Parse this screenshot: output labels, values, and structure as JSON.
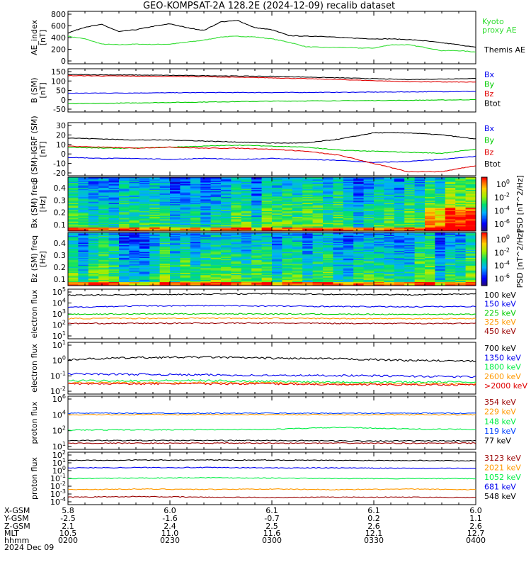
{
  "title": "GEO-KOMPSAT-2A 128.2E (2024-12-09) recalib dataset",
  "colors": {
    "black": "#000000",
    "red": "#e00000",
    "blue": "#0000ee",
    "green": "#00cc00",
    "kyoto_green": "#33dd33",
    "orange": "#ff9900",
    "dark_red": "#990000",
    "sky_blue": "#0040ff",
    "light_green": "#00ee44"
  },
  "footer": {
    "row_labels": [
      "X-GSM",
      "Y-GSM",
      "Z-GSM",
      "MLT",
      "hhmm",
      "2024 Dec 09"
    ],
    "columns": [
      {
        "x": "5.8",
        "y": "-2.5",
        "z": "2.1",
        "mlt": "10.5",
        "hhmm": "0200"
      },
      {
        "x": "6.0",
        "y": "-1.6",
        "z": "2.4",
        "mlt": "11.0",
        "hhmm": "0230"
      },
      {
        "x": "6.1",
        "y": "-0.7",
        "z": "2.5",
        "mlt": "11.6",
        "hhmm": "0300"
      },
      {
        "x": "6.1",
        "y": "0.2",
        "z": "2.6",
        "mlt": "12.1",
        "hhmm": "0330"
      },
      {
        "x": "6.0",
        "y": "1.1",
        "z": "2.6",
        "mlt": "12.7",
        "hhmm": "0400"
      }
    ]
  },
  "chart_data": [
    {
      "type": "line",
      "ylabel": "AE_index [nT]",
      "ylim": [
        0,
        800
      ],
      "yticks": [
        "800",
        "600",
        "400",
        "200",
        "0"
      ],
      "x": [
        0,
        5,
        10,
        15,
        20,
        25,
        30,
        35,
        40,
        45,
        50,
        55,
        60,
        65,
        70,
        75,
        80,
        85,
        90,
        95,
        100,
        105,
        110,
        115,
        120
      ],
      "series": [
        {
          "name": "Kyoto proxy AE",
          "color": "kyoto_green",
          "values": [
            420,
            380,
            300,
            290,
            300,
            295,
            300,
            330,
            360,
            410,
            420,
            410,
            380,
            330,
            260,
            250,
            250,
            240,
            240,
            290,
            290,
            250,
            200,
            200,
            180
          ]
        },
        {
          "name": "Themis AE",
          "color": "black",
          "values": [
            470,
            560,
            600,
            490,
            520,
            570,
            610,
            550,
            510,
            640,
            660,
            550,
            520,
            430,
            420,
            420,
            400,
            390,
            380,
            380,
            370,
            350,
            320,
            290,
            250
          ]
        }
      ]
    },
    {
      "type": "line",
      "ylabel": "B (SM) [nT]",
      "ylim": [
        -50,
        150
      ],
      "yticks": [
        "150",
        "100",
        "50",
        "0",
        "-50"
      ],
      "x": [
        0,
        20,
        40,
        60,
        80,
        100,
        120
      ],
      "series": [
        {
          "name": "Bx",
          "color": "blue",
          "values": [
            37,
            38,
            40,
            40,
            41,
            43,
            45
          ]
        },
        {
          "name": "By",
          "color": "green",
          "values": [
            -12,
            -8,
            -4,
            0,
            2,
            4,
            7
          ]
        },
        {
          "name": "Bz",
          "color": "red",
          "values": [
            118,
            116,
            113,
            108,
            100,
            90,
            88
          ]
        },
        {
          "name": "Btot",
          "color": "black",
          "values": [
            123,
            121,
            118,
            115,
            108,
            100,
            105
          ]
        }
      ]
    },
    {
      "type": "line",
      "ylabel": "B (SM)-IGRF (SM) [nT]",
      "ylim": [
        -22,
        30
      ],
      "yticks": [
        "30",
        "20",
        "10",
        "0",
        "-10",
        "-20"
      ],
      "x": [
        0,
        10,
        20,
        30,
        40,
        50,
        60,
        70,
        80,
        90,
        100,
        110,
        120
      ],
      "series": [
        {
          "name": "Bx",
          "color": "blue",
          "values": [
            -4,
            -5,
            -5,
            -6,
            -5,
            -6,
            -5,
            -6,
            -7,
            -9,
            -8,
            -6,
            -3
          ]
        },
        {
          "name": "By",
          "color": "green",
          "values": [
            6,
            5,
            5,
            6,
            7,
            8,
            7,
            6,
            3,
            2,
            1,
            0,
            4
          ]
        },
        {
          "name": "Bz",
          "color": "red",
          "values": [
            7,
            6,
            5,
            6,
            5,
            5,
            4,
            2,
            -2,
            -10,
            -18,
            -18,
            -12
          ]
        },
        {
          "name": "Btot",
          "color": "black",
          "values": [
            15,
            14,
            13,
            13,
            12,
            11,
            10,
            10,
            14,
            20,
            20,
            18,
            14
          ]
        }
      ]
    },
    {
      "type": "heatmap",
      "ylabel": "Bx (SM) freq [Hz]",
      "yticks": [
        "0.4",
        "0.3",
        "0.2",
        "0.1"
      ],
      "colorbar": {
        "label": "PSD [nT^2/Hz]",
        "ticks": [
          "10^0",
          "10^-2",
          "10^-4",
          "10^-6"
        ]
      }
    },
    {
      "type": "heatmap",
      "ylabel": "Bz (SM) freq [Hz]",
      "yticks": [
        "0.4",
        "0.3",
        "0.2",
        "0.1"
      ],
      "colorbar": {
        "label": "PSD [nT^2/Hz]",
        "ticks": [
          "10^0",
          "10^-2",
          "10^-4",
          "10^-6"
        ]
      }
    },
    {
      "type": "line",
      "ylabel": "electron flux",
      "yscale": "log",
      "ylim": [
        1,
        100000
      ],
      "yticks": [
        "10^5",
        "10^4",
        "10^3",
        "10^2",
        "10^1"
      ],
      "x": [
        0,
        20,
        40,
        60,
        80,
        100,
        120
      ],
      "series": [
        {
          "name": "100 keV",
          "color": "black",
          "values": [
            25000,
            28000,
            32000,
            35000,
            30000,
            28000,
            32000
          ]
        },
        {
          "name": "150 keV",
          "color": "blue",
          "values": [
            1500,
            2000,
            2200,
            2000,
            1800,
            1700,
            1800
          ]
        },
        {
          "name": "225 keV",
          "color": "green",
          "values": [
            300,
            320,
            330,
            320,
            300,
            290,
            300
          ]
        },
        {
          "name": "325 keV",
          "color": "orange",
          "values": [
            110,
            115,
            120,
            118,
            110,
            108,
            110
          ]
        },
        {
          "name": "450 keV",
          "color": "dark_red",
          "values": [
            35,
            36,
            38,
            38,
            36,
            35,
            36
          ]
        }
      ]
    },
    {
      "type": "line",
      "ylabel": "electron flux",
      "yscale": "log",
      "ylim": [
        0.01,
        10
      ],
      "yticks": [
        "10^1",
        "10^0",
        "10^-1",
        "10^-2"
      ],
      "x": [
        0,
        20,
        40,
        60,
        80,
        100,
        120
      ],
      "series": [
        {
          "name": "700 keV",
          "color": "black",
          "values": [
            1.0,
            1.3,
            1.4,
            1.2,
            1.1,
            0.9,
            0.8
          ]
        },
        {
          "name": "1350 keV",
          "color": "blue",
          "values": [
            0.15,
            0.14,
            0.13,
            0.12,
            0.12,
            0.11,
            0.1
          ]
        },
        {
          "name": "1800 keV",
          "color": "light_green",
          "values": [
            0.06,
            0.06,
            0.06,
            0.055,
            0.05,
            0.05,
            0.05
          ]
        },
        {
          "name": "2600 keV",
          "color": "orange",
          "values": [
            0.045,
            0.045,
            0.045,
            0.045,
            0.04,
            0.04,
            0.04
          ]
        },
        {
          "name": ">2000 keV",
          "color": "red",
          "values": [
            0.04,
            0.04,
            0.04,
            0.04,
            0.035,
            0.035,
            0.035
          ]
        }
      ]
    },
    {
      "type": "line",
      "ylabel": "proton flux",
      "yscale": "log",
      "ylim": [
        1,
        1000000
      ],
      "yticks": [
        "10^6",
        "10^4",
        "10^2",
        "10^1"
      ],
      "x": [
        0,
        20,
        40,
        60,
        80,
        100,
        120
      ],
      "series": [
        {
          "name": "354 keV",
          "color": "dark_red",
          "values": [
            5,
            5,
            5,
            5,
            5,
            5,
            5
          ]
        },
        {
          "name": "229 keV",
          "color": "orange",
          "values": [
            8000,
            8200,
            8300,
            8300,
            8200,
            8100,
            8000
          ]
        },
        {
          "name": "148 keV",
          "color": "light_green",
          "values": [
            150,
            160,
            170,
            180,
            300,
            200,
            180
          ]
        },
        {
          "name": "119 keV",
          "color": "sky_blue",
          "values": [
            12000,
            12000,
            12000,
            12000,
            12000,
            12000,
            12000
          ]
        },
        {
          "name": "77 keV",
          "color": "black",
          "values": [
            10,
            10,
            10,
            10,
            9,
            9,
            9
          ]
        }
      ]
    },
    {
      "type": "line",
      "ylabel": "proton flux",
      "yscale": "log",
      "ylim": [
        1e-05,
        100
      ],
      "yticks": [
        "10^2",
        "10^1",
        "10^0",
        "10^-1",
        "10^-2",
        "10^-3",
        "10^-4"
      ],
      "x": [
        0,
        20,
        40,
        60,
        80,
        100,
        120
      ],
      "series": [
        {
          "name": "3123 keV",
          "color": "dark_red",
          "values": [
            0.0001,
            0.00012,
            0.0001,
            9e-05,
            0.0001,
            0.0001,
            9e-05
          ]
        },
        {
          "name": "2021 keV",
          "color": "orange",
          "values": [
            0.001,
            0.0012,
            0.0011,
            0.0012,
            0.001,
            0.0012,
            0.001
          ]
        },
        {
          "name": "1052 keV",
          "color": "light_green",
          "values": [
            0.03,
            0.035,
            0.04,
            0.035,
            0.03,
            0.03,
            0.03
          ]
        },
        {
          "name": "681 keV",
          "color": "blue",
          "values": [
            0.8,
            0.9,
            0.9,
            0.8,
            0.8,
            0.7,
            0.7
          ]
        },
        {
          "name": "548 keV",
          "color": "black",
          "values": [
            8,
            9,
            9,
            9,
            8,
            8,
            7
          ]
        }
      ]
    }
  ]
}
